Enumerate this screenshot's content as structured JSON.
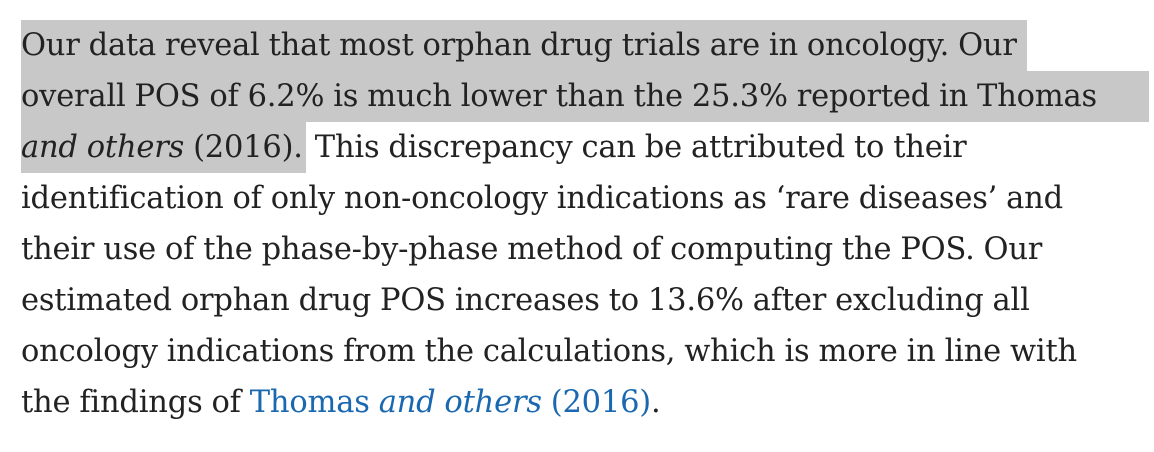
{
  "paragraph": {
    "line1": "Our data reveal that most orphan drug trials are in oncology. Our",
    "line2": "overall POS of 6.2% is much lower than the 25.3% reported in Thomas",
    "line3_italic": "and others",
    "line3_hl_rest": " (2016).",
    "line3_rest": " This discrepancy can be attributed to their",
    "line4": "identification of only non-oncology indications as ‘rare diseases’ and",
    "line5": "their use of the phase-by-phase method of computing the POS. Our",
    "line6": "estimated orphan drug POS increases to 13.6% after excluding all",
    "line7": "oncology indications from the calculations, which is more in line with",
    "line8_prefix": "the findings of ",
    "link_author": "Thomas ",
    "link_italic": "and others",
    "link_year": " (2016)",
    "line8_suffix": "."
  },
  "colors": {
    "text": "#222222",
    "highlight": "#c8c8c8",
    "link": "#1a68b0"
  }
}
